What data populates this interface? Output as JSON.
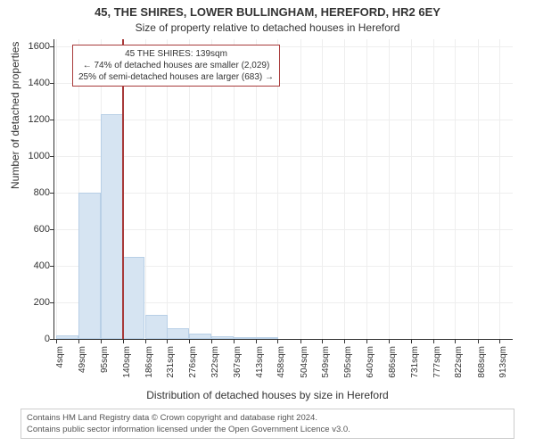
{
  "title_line1": "45, THE SHIRES, LOWER BULLINGHAM, HEREFORD, HR2 6EY",
  "title_line2": "Size of property relative to detached houses in Hereford",
  "y_axis_label": "Number of detached properties",
  "x_axis_label": "Distribution of detached houses by size in Hereford",
  "footer_line1": "Contains HM Land Registry data © Crown copyright and database right 2024.",
  "footer_line2": "Contains public sector information licensed under the Open Government Licence v3.0.",
  "annotation": {
    "line1": "45 THE SHIRES: 139sqm",
    "line2": "← 74% of detached houses are smaller (2,029)",
    "line3": "25% of semi-detached houses are larger (683) →"
  },
  "chart": {
    "type": "histogram",
    "background_color": "#ffffff",
    "grid_color": "#eeeeee",
    "bar_fill": "#d6e4f2",
    "bar_border": "#b8cfe6",
    "highlight_color": "#a83a3a",
    "axis_color": "#333333",
    "font_family": "Arial",
    "title_fontsize": 13,
    "subtitle_fontsize": 12,
    "axis_label_fontsize": 12,
    "tick_fontsize": 11,
    "x_tick_fontsize": 10,
    "annotation_fontsize": 10,
    "footer_fontsize": 9.5,
    "x_range": [
      0,
      940
    ],
    "y_range": [
      0,
      1640
    ],
    "y_ticks": [
      0,
      200,
      400,
      600,
      800,
      1000,
      1200,
      1400,
      1600
    ],
    "x_tick_labels": [
      "4sqm",
      "49sqm",
      "95sqm",
      "140sqm",
      "186sqm",
      "231sqm",
      "276sqm",
      "322sqm",
      "367sqm",
      "413sqm",
      "458sqm",
      "504sqm",
      "549sqm",
      "595sqm",
      "640sqm",
      "686sqm",
      "731sqm",
      "777sqm",
      "822sqm",
      "868sqm",
      "913sqm"
    ],
    "x_tick_positions": [
      4,
      49,
      95,
      140,
      186,
      231,
      276,
      322,
      367,
      413,
      458,
      504,
      549,
      595,
      640,
      686,
      731,
      777,
      822,
      868,
      913
    ],
    "highlight_x": 139,
    "bin_width": 45.5,
    "bars": [
      {
        "x0": 4,
        "count": 20
      },
      {
        "x0": 49,
        "count": 800
      },
      {
        "x0": 95,
        "count": 1230
      },
      {
        "x0": 140,
        "count": 450
      },
      {
        "x0": 186,
        "count": 130
      },
      {
        "x0": 231,
        "count": 60
      },
      {
        "x0": 276,
        "count": 30
      },
      {
        "x0": 322,
        "count": 15
      },
      {
        "x0": 367,
        "count": 8
      },
      {
        "x0": 413,
        "count": 5
      }
    ]
  }
}
